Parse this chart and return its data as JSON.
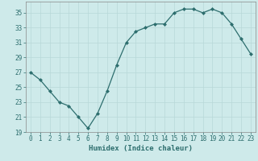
{
  "x": [
    0,
    1,
    2,
    3,
    4,
    5,
    6,
    7,
    8,
    9,
    10,
    11,
    12,
    13,
    14,
    15,
    16,
    17,
    18,
    19,
    20,
    21,
    22,
    23
  ],
  "y": [
    27,
    26,
    24.5,
    23,
    22.5,
    21,
    19.5,
    21.5,
    24.5,
    28,
    31,
    32.5,
    33,
    33.5,
    33.5,
    35,
    35.5,
    35.5,
    35,
    35.5,
    35,
    33.5,
    31.5,
    29.5
  ],
  "line_color": "#2d6e6e",
  "marker": "D",
  "marker_size": 2,
  "bg_color": "#ceeaea",
  "grid_major_color": "#b8d8d8",
  "grid_minor_color": "#d0e8e8",
  "xlabel": "Humidex (Indice chaleur)",
  "xlim": [
    -0.5,
    23.5
  ],
  "ylim": [
    19,
    36.5
  ],
  "yticks": [
    19,
    21,
    23,
    25,
    27,
    29,
    31,
    33,
    35
  ],
  "xticks": [
    0,
    1,
    2,
    3,
    4,
    5,
    6,
    7,
    8,
    9,
    10,
    11,
    12,
    13,
    14,
    15,
    16,
    17,
    18,
    19,
    20,
    21,
    22,
    23
  ],
  "tick_fontsize": 5.5,
  "label_fontsize": 6.5,
  "linewidth": 0.9
}
